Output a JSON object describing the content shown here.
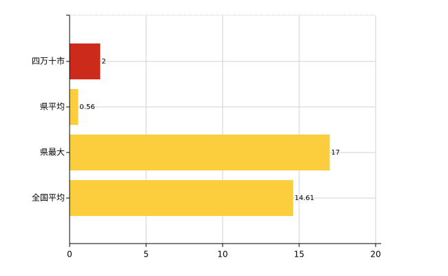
{
  "chart_data": {
    "type": "hbar",
    "categories": [
      "四万十市",
      "県平均",
      "県最大",
      "全国平均"
    ],
    "values": [
      2,
      0.56,
      17,
      14.61
    ],
    "colors": [
      "#cc2a1b",
      "#fccd3c",
      "#fccd3c",
      "#fccd3c"
    ],
    "xlim": [
      0,
      20
    ],
    "xticks": [
      0,
      5,
      10,
      15,
      20
    ],
    "grid": true
  }
}
